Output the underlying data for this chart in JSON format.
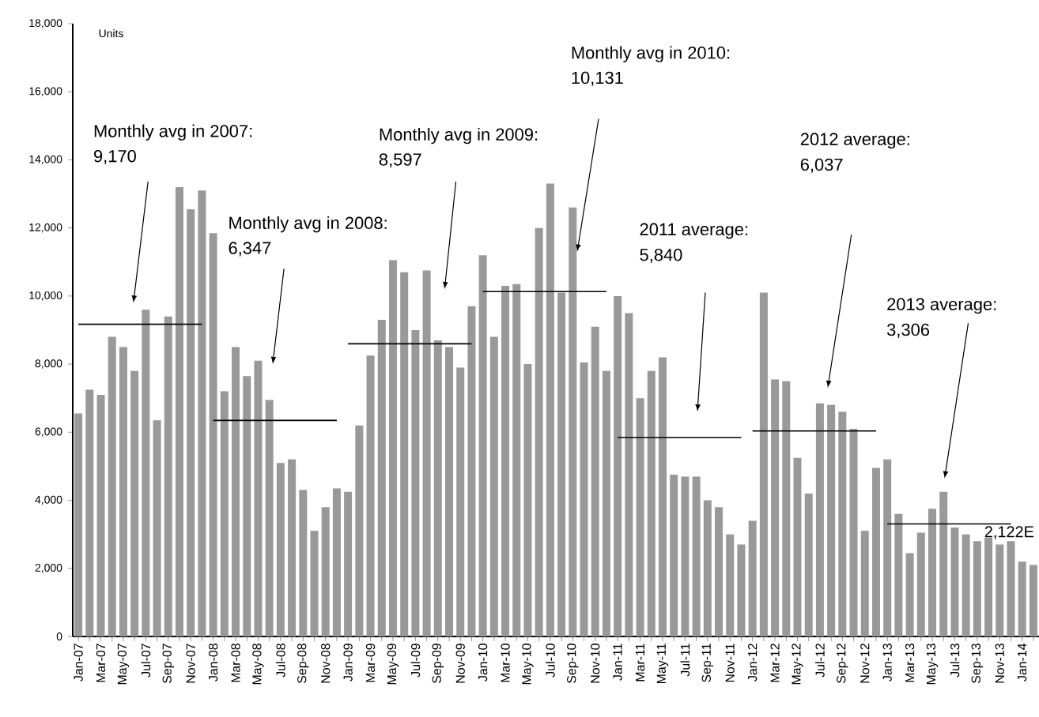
{
  "chart_data": {
    "type": "bar",
    "ylabel": "Units",
    "categories": [
      "Jan-07",
      null,
      "Mar-07",
      null,
      "May-07",
      null,
      "Jul-07",
      null,
      "Sep-07",
      null,
      "Nov-07",
      null,
      "Jan-08",
      null,
      "Mar-08",
      null,
      "May-08",
      null,
      "Jul-08",
      null,
      "Sep-08",
      null,
      "Nov-08",
      null,
      "Jan-09",
      null,
      "Mar-09",
      null,
      "May-09",
      null,
      "Jul-09",
      null,
      "Sep-09",
      null,
      "Nov-09",
      null,
      "Jan-10",
      null,
      "Mar-10",
      null,
      "May-10",
      null,
      "Jul-10",
      null,
      "Sep-10",
      null,
      "Nov-10",
      null,
      "Jan-11",
      null,
      "Mar-11",
      null,
      "May-11",
      null,
      "Jul-11",
      null,
      "Sep-11",
      null,
      "Nov-11",
      null,
      "Jan-12",
      null,
      "Mar-12",
      null,
      "May-12",
      null,
      "Jul-12",
      null,
      "Sep-12",
      null,
      "Nov-12",
      null,
      "Jan-13",
      null,
      "Mar-13",
      null,
      "May-13",
      null,
      "Jul-13",
      null,
      "Sep-13",
      null,
      "Nov-13",
      null,
      "Jan-14",
      null
    ],
    "series": [
      {
        "color": "#999999",
        "values": [
          6550,
          7250,
          7100,
          8800,
          8500,
          7800,
          9600,
          6350,
          9400,
          13200,
          12550,
          13100,
          11850,
          7200,
          8500,
          7650,
          8100,
          6950,
          5100,
          5200,
          4300,
          3100,
          3800,
          4350,
          4250,
          6200,
          8250,
          9300,
          11050,
          10700,
          9000,
          10750,
          8700,
          8500,
          7900,
          9700,
          11200,
          8800,
          10300,
          10350,
          8000,
          12000,
          13300,
          10100,
          12600,
          8050,
          9100,
          7800,
          10000,
          9500,
          7000,
          7800,
          8200,
          4750,
          4700,
          4700,
          4000,
          3800,
          3000,
          2700,
          3400,
          10100,
          7550,
          7500,
          5250,
          4200,
          6850,
          6800,
          6600,
          6100,
          3100,
          4950,
          5200,
          3600,
          2450,
          3050,
          3750,
          4250,
          3200,
          3000,
          2800,
          2900,
          2700,
          2800,
          2200,
          2100
        ]
      },
      {
        "type": "line",
        "color": "#000000",
        "values": [
          9170,
          9170,
          9170,
          9170,
          9170,
          9170,
          9170,
          9170,
          9170,
          9170,
          9170,
          9170,
          null,
          null,
          null,
          null,
          null,
          null,
          null,
          null,
          null,
          null,
          null,
          null,
          null,
          null,
          null,
          null,
          null,
          null,
          null,
          null,
          null,
          null,
          null,
          null,
          null,
          null,
          null,
          null,
          null,
          null,
          null,
          null,
          null,
          null,
          null,
          null,
          null,
          null,
          null,
          null,
          null,
          null,
          null,
          null,
          null,
          null,
          null,
          null,
          null,
          null,
          null,
          null,
          null,
          null,
          null,
          null,
          null,
          null,
          null,
          null,
          null,
          null,
          null,
          null,
          null,
          null,
          null,
          null,
          null,
          null,
          null,
          null,
          null,
          null
        ]
      },
      {
        "type": "line",
        "color": "#000000",
        "values": [
          null,
          null,
          null,
          null,
          null,
          null,
          null,
          null,
          null,
          null,
          null,
          null,
          6347,
          6347,
          6347,
          6347,
          6347,
          6347,
          6347,
          6347,
          6347,
          6347,
          6347,
          6347,
          null,
          null,
          null,
          null,
          null,
          null,
          null,
          null,
          null,
          null,
          null,
          null,
          null,
          null,
          null,
          null,
          null,
          null,
          null,
          null,
          null,
          null,
          null,
          null,
          null,
          null,
          null,
          null,
          null,
          null,
          null,
          null,
          null,
          null,
          null,
          null,
          null,
          null,
          null,
          null,
          null,
          null,
          null,
          null,
          null,
          null,
          null,
          null,
          null,
          null,
          null,
          null,
          null,
          null,
          null,
          null,
          null,
          null,
          null,
          null,
          null,
          null
        ]
      },
      {
        "type": "line",
        "color": "#000000",
        "values": [
          null,
          null,
          null,
          null,
          null,
          null,
          null,
          null,
          null,
          null,
          null,
          null,
          null,
          null,
          null,
          null,
          null,
          null,
          null,
          null,
          null,
          null,
          null,
          null,
          8597,
          8597,
          8597,
          8597,
          8597,
          8597,
          8597,
          8597,
          8597,
          8597,
          8597,
          8597,
          null,
          null,
          null,
          null,
          null,
          null,
          null,
          null,
          null,
          null,
          null,
          null,
          null,
          null,
          null,
          null,
          null,
          null,
          null,
          null,
          null,
          null,
          null,
          null,
          null,
          null,
          null,
          null,
          null,
          null,
          null,
          null,
          null,
          null,
          null,
          null,
          null,
          null,
          null,
          null,
          null,
          null,
          null,
          null,
          null,
          null,
          null,
          null,
          null,
          null
        ]
      },
      {
        "type": "line",
        "color": "#000000",
        "values": [
          null,
          null,
          null,
          null,
          null,
          null,
          null,
          null,
          null,
          null,
          null,
          null,
          null,
          null,
          null,
          null,
          null,
          null,
          null,
          null,
          null,
          null,
          null,
          null,
          null,
          null,
          null,
          null,
          null,
          null,
          null,
          null,
          null,
          null,
          null,
          null,
          10131,
          10131,
          10131,
          10131,
          10131,
          10131,
          10131,
          10131,
          10131,
          10131,
          10131,
          10131,
          null,
          null,
          null,
          null,
          null,
          null,
          null,
          null,
          null,
          null,
          null,
          null,
          null,
          null,
          null,
          null,
          null,
          null,
          null,
          null,
          null,
          null,
          null,
          null,
          null,
          null,
          null,
          null,
          null,
          null,
          null,
          null,
          null,
          null,
          null,
          null,
          null,
          null
        ]
      },
      {
        "type": "line",
        "color": "#000000",
        "values": [
          null,
          null,
          null,
          null,
          null,
          null,
          null,
          null,
          null,
          null,
          null,
          null,
          null,
          null,
          null,
          null,
          null,
          null,
          null,
          null,
          null,
          null,
          null,
          null,
          null,
          null,
          null,
          null,
          null,
          null,
          null,
          null,
          null,
          null,
          null,
          null,
          null,
          null,
          null,
          null,
          null,
          null,
          null,
          null,
          null,
          null,
          null,
          null,
          5840,
          5840,
          5840,
          5840,
          5840,
          5840,
          5840,
          5840,
          5840,
          5840,
          5840,
          5840,
          null,
          null,
          null,
          null,
          null,
          null,
          null,
          null,
          null,
          null,
          null,
          null,
          null,
          null,
          null,
          null,
          null,
          null,
          null,
          null,
          null,
          null,
          null,
          null,
          null,
          null
        ]
      },
      {
        "type": "line",
        "color": "#000000",
        "values": [
          null,
          null,
          null,
          null,
          null,
          null,
          null,
          null,
          null,
          null,
          null,
          null,
          null,
          null,
          null,
          null,
          null,
          null,
          null,
          null,
          null,
          null,
          null,
          null,
          null,
          null,
          null,
          null,
          null,
          null,
          null,
          null,
          null,
          null,
          null,
          null,
          null,
          null,
          null,
          null,
          null,
          null,
          null,
          null,
          null,
          null,
          null,
          null,
          null,
          null,
          null,
          null,
          null,
          null,
          null,
          null,
          null,
          null,
          null,
          null,
          6037,
          6037,
          6037,
          6037,
          6037,
          6037,
          6037,
          6037,
          6037,
          6037,
          6037,
          6037,
          null,
          null,
          null,
          null,
          null,
          null,
          null,
          null,
          null,
          null,
          null,
          null,
          null,
          null
        ]
      },
      {
        "type": "line",
        "color": "#000000",
        "values": [
          null,
          null,
          null,
          null,
          null,
          null,
          null,
          null,
          null,
          null,
          null,
          null,
          null,
          null,
          null,
          null,
          null,
          null,
          null,
          null,
          null,
          null,
          null,
          null,
          null,
          null,
          null,
          null,
          null,
          null,
          null,
          null,
          null,
          null,
          null,
          null,
          null,
          null,
          null,
          null,
          null,
          null,
          null,
          null,
          null,
          null,
          null,
          null,
          null,
          null,
          null,
          null,
          null,
          null,
          null,
          null,
          null,
          null,
          null,
          null,
          null,
          null,
          null,
          null,
          null,
          null,
          null,
          null,
          null,
          null,
          null,
          null,
          3306,
          3306,
          3306,
          3306,
          3306,
          3306,
          3306,
          3306,
          3306,
          3306,
          3306,
          3306,
          null,
          null
        ]
      }
    ],
    "ylim": [
      0,
      18000
    ],
    "yticks": [
      0,
      {
        "value": 2000,
        "label": "2,000"
      },
      {
        "value": 4000,
        "label": "4,000"
      },
      {
        "value": 6000,
        "label": "6,000"
      },
      {
        "value": 8000,
        "label": "8,000"
      },
      {
        "value": 10000,
        "label": "10,000"
      },
      {
        "value": 12000,
        "label": "12,000"
      },
      {
        "value": 14000,
        "label": "14,000"
      },
      {
        "value": 16000,
        "label": "16,000"
      },
      {
        "value": 18000,
        "label": "18,000"
      }
    ],
    "annotations": [
      "Monthly avg in 2007:",
      "9,170",
      "Monthly avg in 2008:",
      "6,347",
      "Monthly avg in 2009:",
      "8,597",
      "Monthly avg in 2010:",
      "10,131",
      "2011 average:",
      "5,840",
      "2012 average:",
      "6,037",
      "2013 average:",
      "3,306",
      "2,122E"
    ]
  }
}
